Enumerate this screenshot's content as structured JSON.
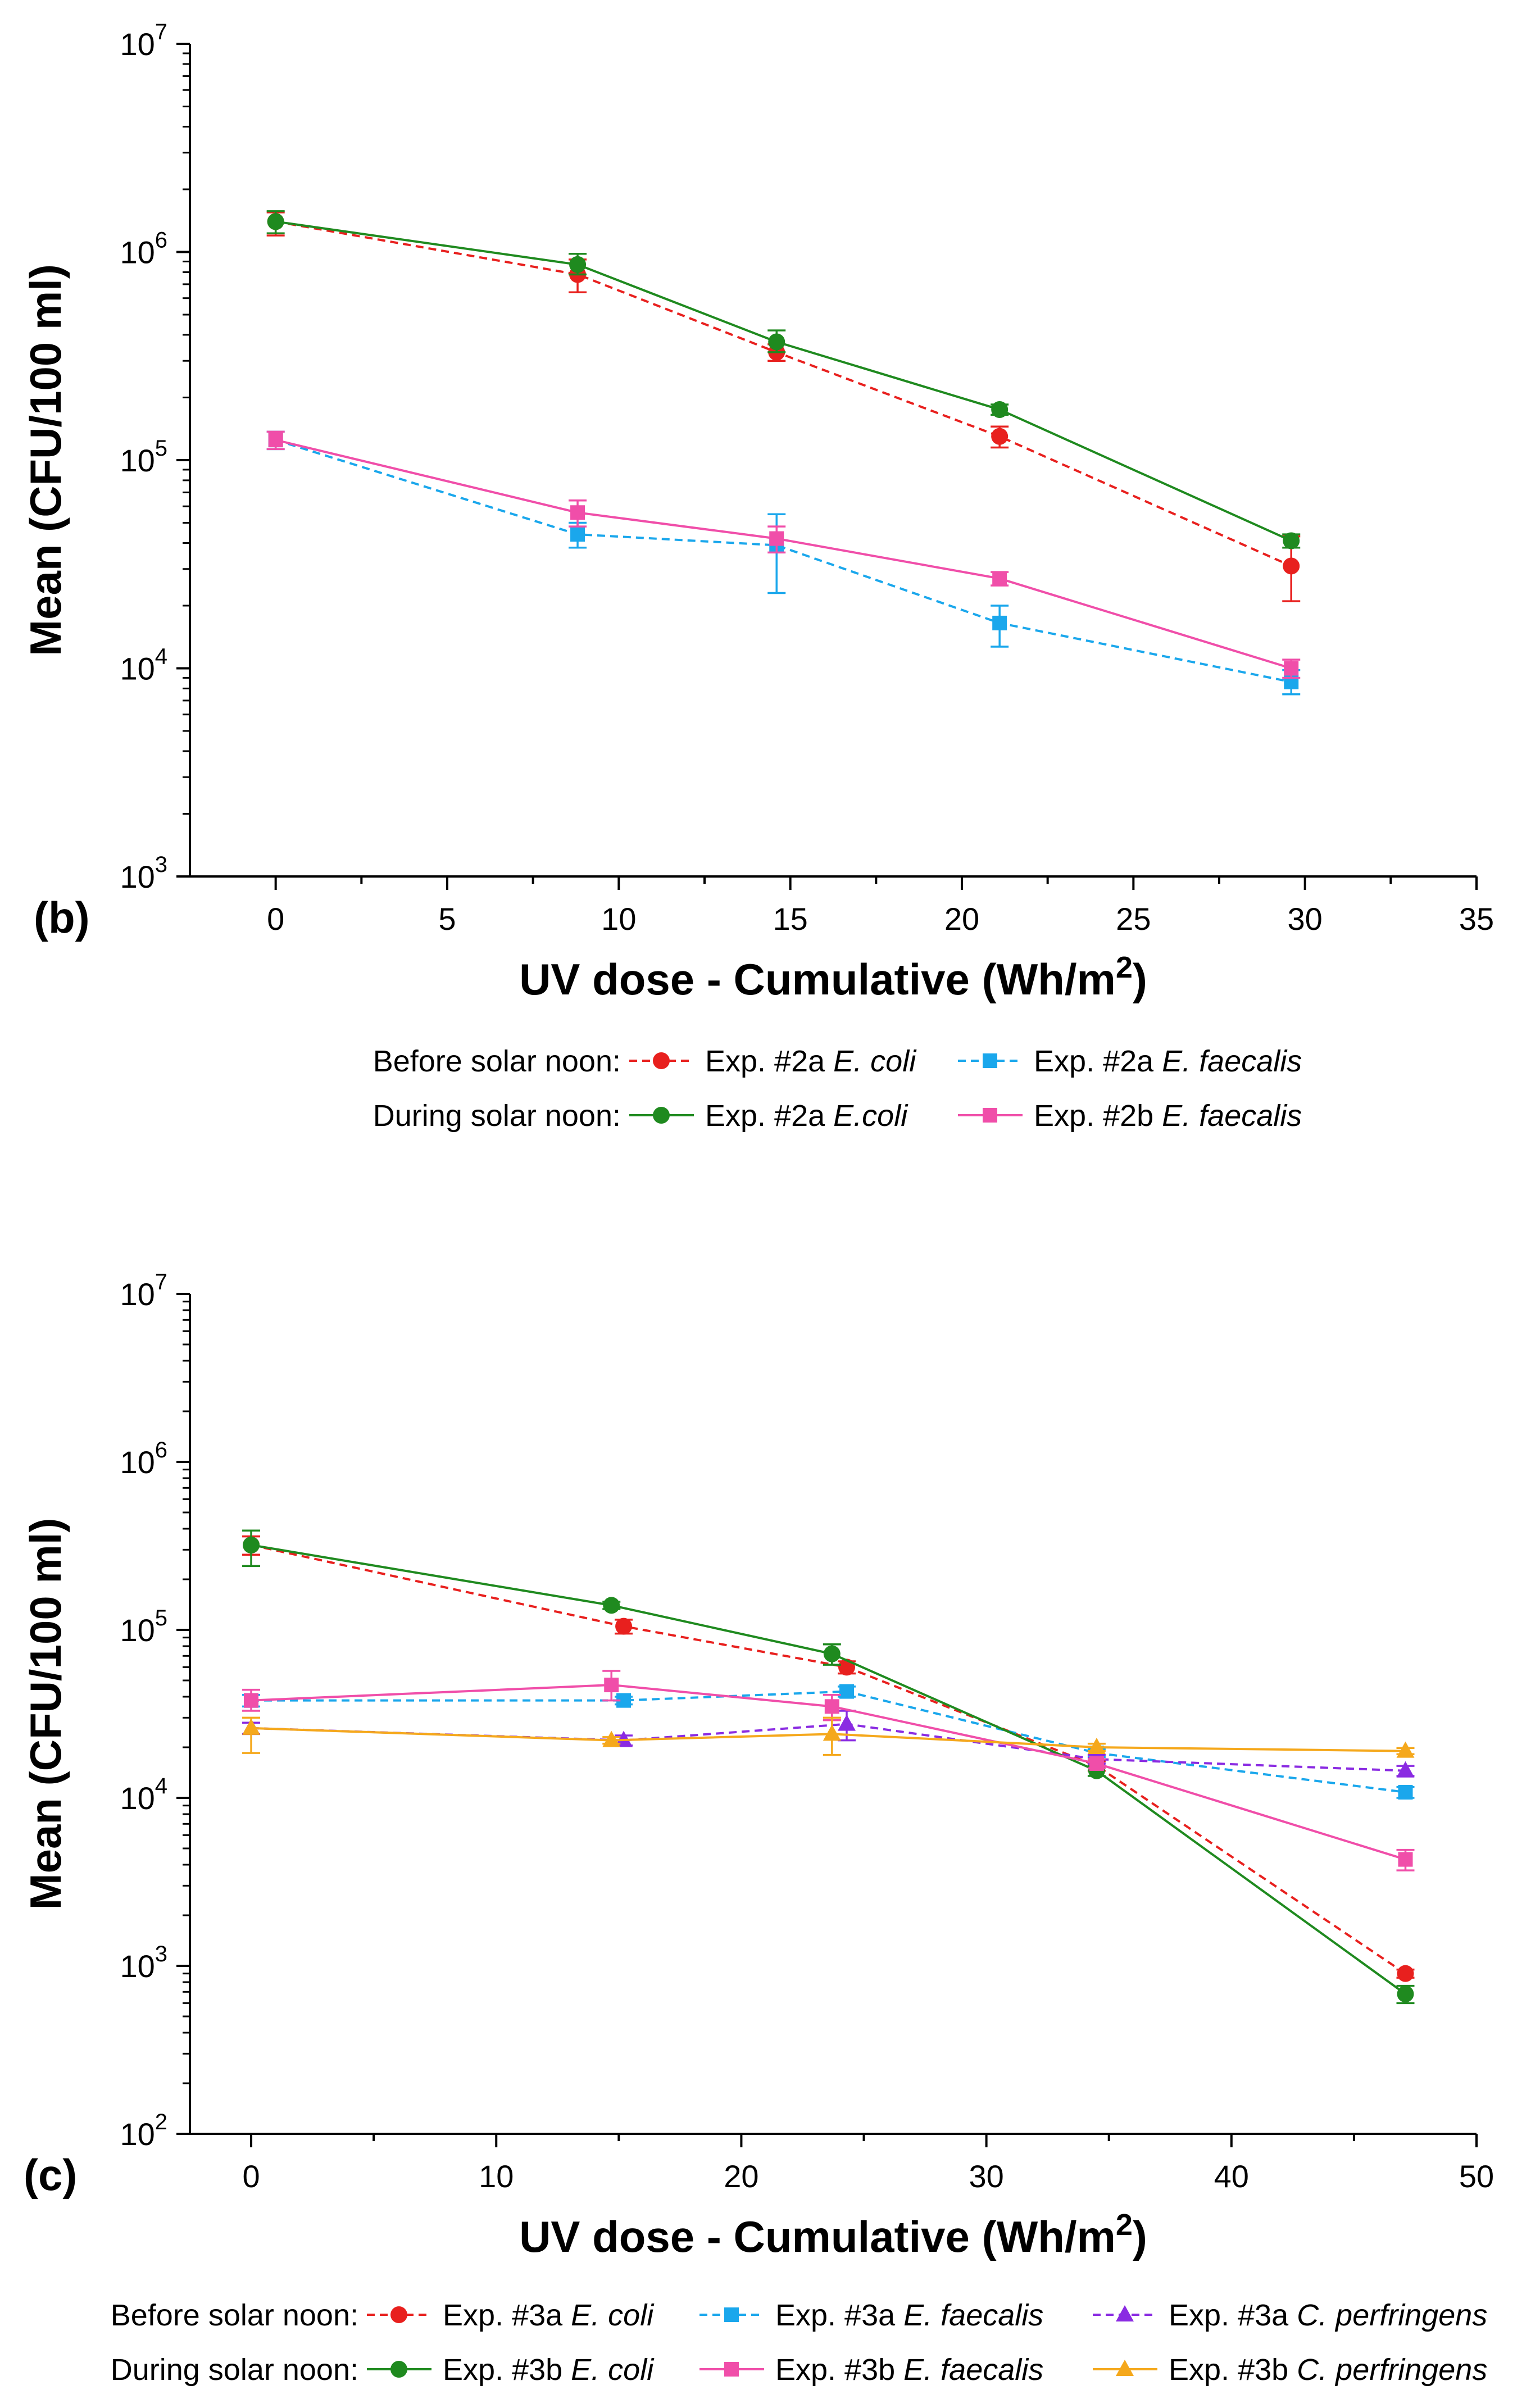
{
  "chart_data": [
    {
      "type": "line",
      "panel_label": "(b)",
      "xlabel_main": "UV dose - Cumulative (Wh/m",
      "xlabel_sup": "2",
      "xlabel_end": ")",
      "ylabel": "Mean (CFU/100 ml)",
      "yscale": "log",
      "xlim": [
        -2.5,
        35
      ],
      "ylim": [
        1000,
        10000000
      ],
      "x_ticks": [
        0,
        5,
        10,
        15,
        20,
        25,
        30,
        35
      ],
      "x_tick_labels": [
        "0",
        "5",
        "10",
        "15",
        "20",
        "25",
        "30",
        "35"
      ],
      "y_ticks": [
        1000,
        10000,
        100000,
        1000000,
        10000000
      ],
      "y_tick_base": "10",
      "y_tick_exps": [
        "3",
        "4",
        "5",
        "6",
        "7"
      ],
      "legend": [
        {
          "group": "Before solar noon:",
          "items": [
            "ecoli_2a_before",
            "faecalis_2a_before"
          ]
        },
        {
          "group": "During solar noon:",
          "items": [
            "ecoli_2a_during",
            "faecalis_2b_during"
          ]
        }
      ],
      "series": [
        {
          "id": "ecoli_2a_before",
          "name": "Exp. #2a",
          "organism": "E. coli",
          "color": "#e8201e",
          "dash": "dashed",
          "marker": "circle",
          "x": [
            0,
            8.8,
            14.6,
            21.1,
            29.6
          ],
          "values": [
            1400000,
            780000,
            330000,
            130000,
            31000
          ],
          "err_low": [
            1200000,
            640000,
            300000,
            115000,
            21000
          ],
          "err_high": [
            1550000,
            920000,
            360000,
            145000,
            43000
          ]
        },
        {
          "id": "faecalis_2a_before",
          "name": "Exp. #2a",
          "organism": "E. faecalis",
          "color": "#1aa7ec",
          "dash": "dashed",
          "marker": "square",
          "x": [
            0,
            8.8,
            14.6,
            21.1,
            29.6
          ],
          "values": [
            125000,
            44000,
            39000,
            16500,
            8600
          ],
          "err_low": [
            113000,
            38000,
            23000,
            12700,
            7500
          ],
          "err_high": [
            137000,
            50000,
            55000,
            20000,
            9800
          ]
        },
        {
          "id": "ecoli_2a_during",
          "name": "Exp. #2a",
          "organism": "E.coli",
          "color": "#1f8a1f",
          "dash": "solid",
          "marker": "circle",
          "x": [
            0,
            8.8,
            14.6,
            21.1,
            29.6
          ],
          "values": [
            1400000,
            870000,
            370000,
            175000,
            41000
          ],
          "err_low": [
            1230000,
            780000,
            330000,
            165000,
            38000
          ],
          "err_high": [
            1570000,
            980000,
            420000,
            185000,
            44000
          ]
        },
        {
          "id": "faecalis_2b_during",
          "name": "Exp. #2b",
          "organism": "E. faecalis",
          "color": "#f04ea9",
          "dash": "solid",
          "marker": "square",
          "x": [
            0,
            8.8,
            14.6,
            21.1,
            29.6
          ],
          "values": [
            125000,
            56000,
            42000,
            27000,
            10000
          ],
          "err_low": [
            113000,
            48000,
            36000,
            25000,
            9000
          ],
          "err_high": [
            137000,
            64000,
            48000,
            29000,
            11000
          ]
        }
      ]
    },
    {
      "type": "line",
      "panel_label": "(c)",
      "xlabel_main": "UV dose - Cumulative (Wh/m",
      "xlabel_sup": "2",
      "xlabel_end": ")",
      "ylabel": "Mean (CFU/100 ml)",
      "yscale": "log",
      "xlim": [
        -2.5,
        50
      ],
      "ylim": [
        100,
        10000000
      ],
      "x_ticks": [
        0,
        10,
        20,
        30,
        40,
        50
      ],
      "x_tick_labels": [
        "0",
        "10",
        "20",
        "30",
        "40",
        "50"
      ],
      "y_ticks": [
        100,
        1000,
        10000,
        100000,
        1000000,
        10000000
      ],
      "y_tick_base": "10",
      "y_tick_exps": [
        "2",
        "3",
        "4",
        "5",
        "6",
        "7"
      ],
      "legend": [
        {
          "group": "Before solar noon:",
          "items": [
            "ecoli_3a",
            "faecalis_3a",
            "perf_3a"
          ]
        },
        {
          "group": "During solar noon:",
          "items": [
            "ecoli_3b",
            "faecalis_3b",
            "perf_3b"
          ]
        }
      ],
      "series": [
        {
          "id": "ecoli_3a",
          "name": "Exp. #3a",
          "organism": "E. coli",
          "color": "#e8201e",
          "dash": "dashed",
          "marker": "circle",
          "x": [
            0,
            15.2,
            24.3,
            34.5,
            47.1
          ],
          "values": [
            320000,
            105000,
            60000,
            15500,
            900
          ],
          "err_low": [
            280000,
            95000,
            55000,
            14500,
            850
          ],
          "err_high": [
            360000,
            115000,
            65000,
            16500,
            950
          ]
        },
        {
          "id": "faecalis_3a",
          "name": "Exp. #3a",
          "organism": "E. faecalis",
          "color": "#1aa7ec",
          "dash": "dashed",
          "marker": "square",
          "x": [
            0,
            15.2,
            24.3,
            34.5,
            47.1
          ],
          "values": [
            38000,
            38000,
            43000,
            18500,
            10800
          ],
          "err_low": [
            35000,
            36000,
            40000,
            17500,
            10000
          ],
          "err_high": [
            41000,
            40000,
            46000,
            19500,
            11600
          ]
        },
        {
          "id": "perf_3a",
          "name": "Exp. #3a",
          "organism": "C. perfringens",
          "color": "#8a2be2",
          "dash": "dashed",
          "marker": "triangle",
          "x": [
            0,
            15.2,
            24.3,
            34.5,
            47.1
          ],
          "values": [
            26000,
            22000,
            27500,
            17000,
            14500
          ],
          "err_low": [
            24000,
            20500,
            22000,
            16000,
            13500
          ],
          "err_high": [
            28000,
            23500,
            33000,
            18000,
            15500
          ]
        },
        {
          "id": "ecoli_3b",
          "name": "Exp. #3b",
          "organism": "E. coli",
          "color": "#1f8a1f",
          "dash": "solid",
          "marker": "circle",
          "x": [
            0,
            14.7,
            23.7,
            34.5,
            47.1
          ],
          "values": [
            320000,
            140000,
            72000,
            14500,
            680
          ],
          "err_low": [
            240000,
            133000,
            62000,
            13500,
            600
          ],
          "err_high": [
            390000,
            147000,
            82000,
            15500,
            760
          ]
        },
        {
          "id": "faecalis_3b",
          "name": "Exp. #3b",
          "organism": "E. faecalis",
          "color": "#f04ea9",
          "dash": "solid",
          "marker": "square",
          "x": [
            0,
            14.7,
            23.7,
            34.5,
            47.1
          ],
          "values": [
            38000,
            47000,
            35000,
            16000,
            4300
          ],
          "err_low": [
            33000,
            38000,
            29000,
            15000,
            3700
          ],
          "err_high": [
            44000,
            57000,
            41000,
            17000,
            4900
          ]
        },
        {
          "id": "perf_3b",
          "name": "Exp. #3b",
          "organism": "C. perfringens",
          "color": "#f5a81c",
          "dash": "solid",
          "marker": "triangle",
          "x": [
            0,
            14.7,
            23.7,
            34.5,
            47.1
          ],
          "values": [
            26000,
            22000,
            24000,
            20000,
            19000
          ],
          "err_low": [
            18500,
            21000,
            18000,
            19000,
            18200
          ],
          "err_high": [
            30000,
            23000,
            30000,
            21000,
            19800
          ]
        }
      ]
    }
  ]
}
